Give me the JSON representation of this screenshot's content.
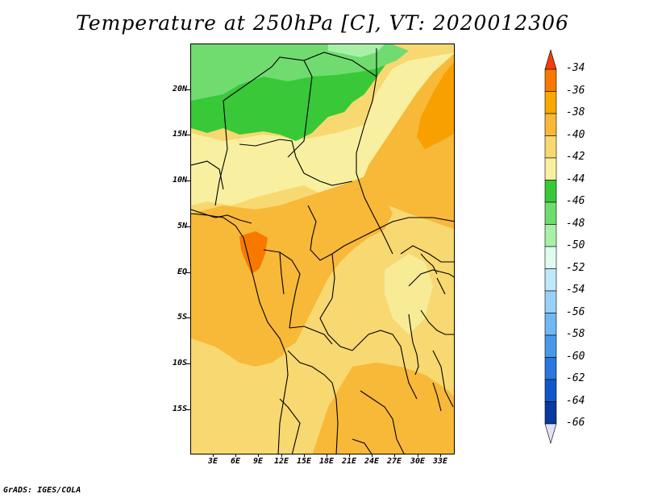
{
  "title": "Temperature at 250hPa [C], VT: 2020012306",
  "credit": "GrADS: IGES/COLA",
  "lat_labels": [
    "20N",
    "15N",
    "10N",
    "5N",
    "EQ",
    "5S",
    "10S",
    "15S"
  ],
  "lon_labels": [
    "3E",
    "6E",
    "9E",
    "12E",
    "15E",
    "18E",
    "21E",
    "24E",
    "27E",
    "30E",
    "33E"
  ],
  "colorbar": {
    "labels": [
      "-34",
      "-36",
      "-38",
      "-40",
      "-42",
      "-44",
      "-46",
      "-48",
      "-50",
      "-52",
      "-54",
      "-56",
      "-58",
      "-60",
      "-62",
      "-64",
      "-66"
    ],
    "colors": [
      "#f04008",
      "#f87800",
      "#f8a800",
      "#f8b838",
      "#f8d870",
      "#f8f0a0",
      "#38c838",
      "#70dc70",
      "#a8f0a8",
      "#e0fcf0",
      "#c0e8f8",
      "#98d0f8",
      "#70b8f0",
      "#4898e8",
      "#2878e0",
      "#1058c8",
      "#0838a0",
      "#081878"
    ]
  },
  "map_colors": {
    "orange_dark": "#f8a000",
    "orange": "#f8b838",
    "yellow": "#f8d870",
    "pale_yellow": "#f8f0a0",
    "green": "#38c838",
    "light_green": "#70dc70",
    "pale_green": "#a8f0a8",
    "red_orange": "#f87800"
  }
}
